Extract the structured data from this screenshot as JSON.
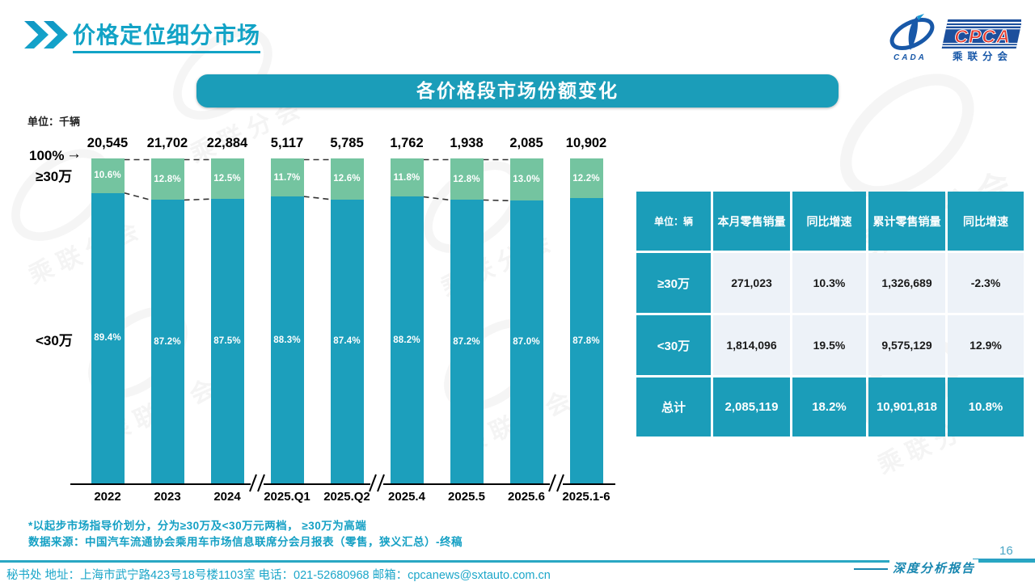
{
  "page": {
    "title": "价格定位细分市场",
    "page_number": "16",
    "report_badge": "深度分析报告",
    "footer": "秘书处  地址：上海市武宁路423号18号楼1103室 电话：021-52680968   邮箱：cpcanews@sxtauto.com.cn"
  },
  "logo": {
    "cada_text": "CADA",
    "cpca_text": "CPCA",
    "cpca_sub": "乘联分会"
  },
  "decor": {
    "watermark_text": "乘联分会"
  },
  "banner": {
    "title": "各价格段市场份额变化"
  },
  "chart_data": {
    "type": "bar",
    "stacked": true,
    "unit_label": "单位：千辆",
    "axis_top_label": "100%",
    "axis_arrow_glyph": "→",
    "series_labels": {
      "high": "≥30万",
      "low": "<30万"
    },
    "categories": [
      "2022",
      "2023",
      "2024",
      "2025.Q1",
      "2025.Q2",
      "2025.4",
      "2025.5",
      "2025.6",
      "2025.1-6"
    ],
    "totals": [
      "20,545",
      "21,702",
      "22,884",
      "5,117",
      "5,785",
      "1,762",
      "1,938",
      "2,085",
      "10,902"
    ],
    "series": [
      {
        "name": "≥30万",
        "values": [
          10.6,
          12.8,
          12.5,
          11.7,
          12.6,
          11.8,
          12.8,
          13.0,
          12.2
        ]
      },
      {
        "name": "<30万",
        "values": [
          89.4,
          87.2,
          87.5,
          88.3,
          87.4,
          88.2,
          87.2,
          87.0,
          87.8
        ]
      }
    ],
    "ylim": [
      0,
      100
    ],
    "legend_position": "left",
    "grid": false,
    "connected_pairs": [
      [
        0,
        1
      ],
      [
        1,
        2
      ],
      [
        3,
        4
      ],
      [
        5,
        6
      ],
      [
        6,
        7
      ]
    ],
    "axis_breaks_after": [
      2,
      4,
      7
    ],
    "colors": {
      "high": "#74c4a0",
      "low": "#1c9fbc"
    }
  },
  "table": {
    "header": [
      "单位：辆",
      "本月零售销量",
      "同比增速",
      "累计零售销量",
      "同比增速"
    ],
    "rows": [
      {
        "label": "≥30万",
        "cells": [
          "271,023",
          "10.3%",
          "1,326,689",
          "-2.3%"
        ],
        "highlight": false
      },
      {
        "label": "<30万",
        "cells": [
          "1,814,096",
          "19.5%",
          "9,575,129",
          "12.9%"
        ],
        "highlight": false
      },
      {
        "label": "总计",
        "cells": [
          "2,085,119",
          "18.2%",
          "10,901,818",
          "10.8%"
        ],
        "highlight": true
      }
    ]
  },
  "footnotes": [
    "*以起步市场指导价划分，分为≥30万及<30万元两档， ≥30万为高端",
    "数据来源：中国汽车流通协会乘用车市场信息联席分会月报表（零售，狭义汇总）-终稿"
  ]
}
